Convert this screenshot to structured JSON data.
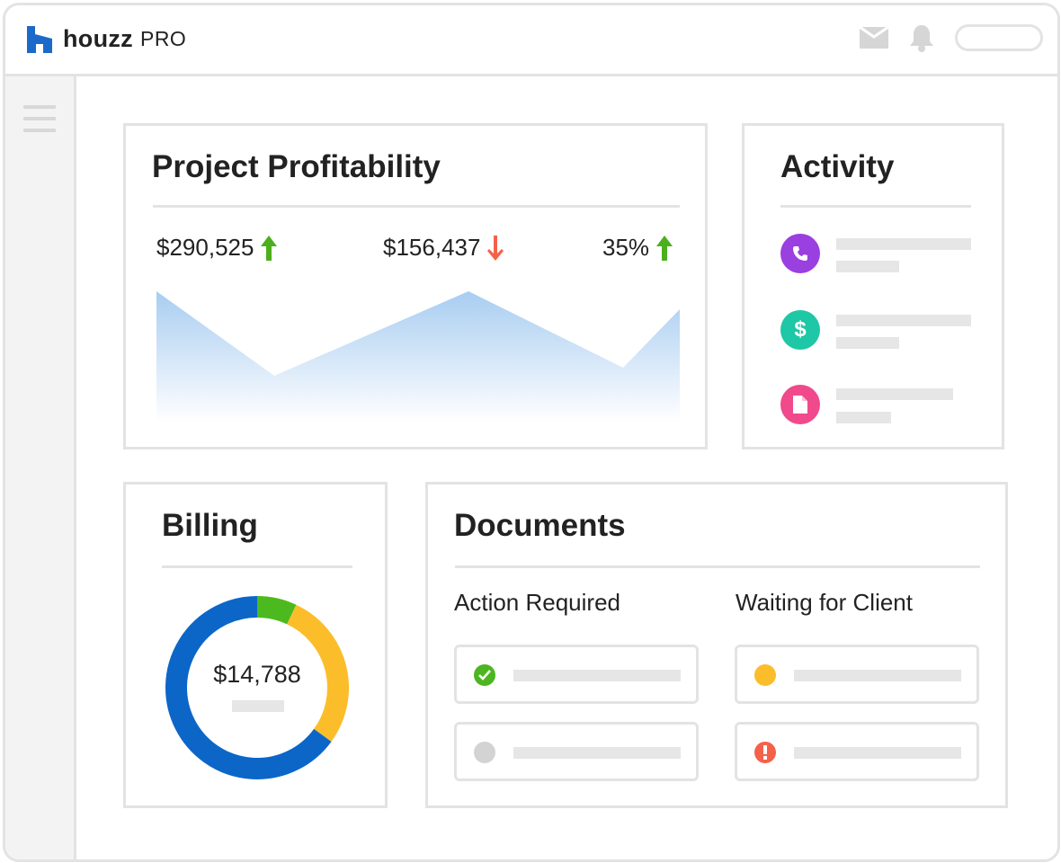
{
  "app": {
    "brand": "houzz",
    "brand_suffix": "PRO",
    "colors": {
      "brand_blue": "#1b6ac9",
      "border": "#e3e3e3",
      "placeholder": "#e6e6e6"
    }
  },
  "header": {
    "icons": [
      "mail-icon",
      "bell-icon"
    ],
    "search_placeholder": ""
  },
  "sidebar": {
    "icon": "hamburger-menu-icon"
  },
  "profitability": {
    "title": "Project Profitability",
    "metrics": [
      {
        "value": "$290,525",
        "trend": "up",
        "color": "#4caf1d"
      },
      {
        "value": "$156,437",
        "trend": "down",
        "color": "#f4614a"
      },
      {
        "value": "35%",
        "trend": "up",
        "color": "#4caf1d"
      }
    ],
    "chart_data": {
      "type": "area",
      "x": [
        0,
        1,
        2,
        3,
        4
      ],
      "values": [
        1.0,
        0.06,
        1.0,
        0.15,
        0.8
      ],
      "color": "#a8cdf1",
      "title": "",
      "xlabel": "",
      "ylabel": ""
    }
  },
  "activity": {
    "title": "Activity",
    "items": [
      {
        "icon": "phone-icon",
        "color": "#9a3fe0"
      },
      {
        "icon": "dollar-icon",
        "glyph": "$",
        "color": "#1ec7a5"
      },
      {
        "icon": "document-icon",
        "color": "#f0498c"
      }
    ]
  },
  "billing": {
    "title": "Billing",
    "total": "$14,788",
    "chart_data": {
      "type": "pie",
      "slices": [
        {
          "value": 7,
          "color": "#4cba1f"
        },
        {
          "value": 28,
          "color": "#fbbd2a"
        },
        {
          "value": 65,
          "color": "#0b66c8"
        }
      ]
    }
  },
  "documents": {
    "title": "Documents",
    "columns": [
      {
        "heading": "Action Required",
        "items": [
          {
            "status": "complete",
            "icon": "check-circle-icon",
            "color": "#4cb520"
          },
          {
            "status": "pending",
            "icon": "circle-icon",
            "color": "#d3d3d3"
          }
        ]
      },
      {
        "heading": "Waiting for Client",
        "items": [
          {
            "status": "waiting",
            "icon": "circle-icon",
            "color": "#fbbd2a"
          },
          {
            "status": "alert",
            "icon": "alert-circle-icon",
            "color": "#f4614a"
          }
        ]
      }
    ]
  }
}
